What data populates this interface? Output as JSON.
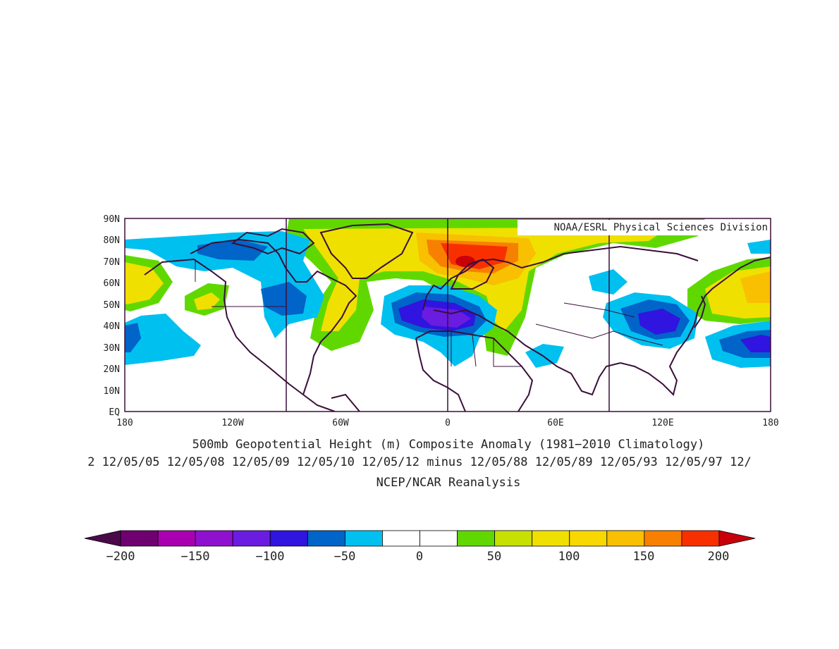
{
  "map": {
    "credit": "NOAA/ESRL Physical Sciences Division",
    "lat_labels": [
      "90N",
      "80N",
      "70N",
      "60N",
      "50N",
      "40N",
      "30N",
      "20N",
      "10N",
      "EQ"
    ],
    "lon_labels": [
      "180",
      "120W",
      "60W",
      "0",
      "60E",
      "120E",
      "180"
    ],
    "title_line1": "500mb Geopotential Height (m) Composite Anomaly (1981−2010 Climatology)",
    "title_line2": "2 12/05/05 12/05/08 12/05/09 12/05/10 12/05/12 minus 12/05/88 12/05/89 12/05/93 12/05/97 12/",
    "title_line3": "NCEP/NCAR Reanalysis",
    "colors": {
      "frame": "#3a0f3a",
      "coast": "#3a0f3a"
    }
  },
  "colorbar": {
    "labels": [
      "−200",
      "−150",
      "−100",
      "−50",
      "0",
      "50",
      "100",
      "150",
      "200"
    ],
    "low_arrow_color": "#4a0a4a",
    "high_arrow_color": "#c8000a",
    "colors": [
      "#6e0070",
      "#a800b0",
      "#9010d0",
      "#6a1ce0",
      "#3014e0",
      "#0064c8",
      "#00c0f0",
      "#ffffff",
      "#ffffff",
      "#60d800",
      "#c8e000",
      "#f0e000",
      "#f8d800",
      "#f8c000",
      "#f88000",
      "#f83000"
    ]
  }
}
